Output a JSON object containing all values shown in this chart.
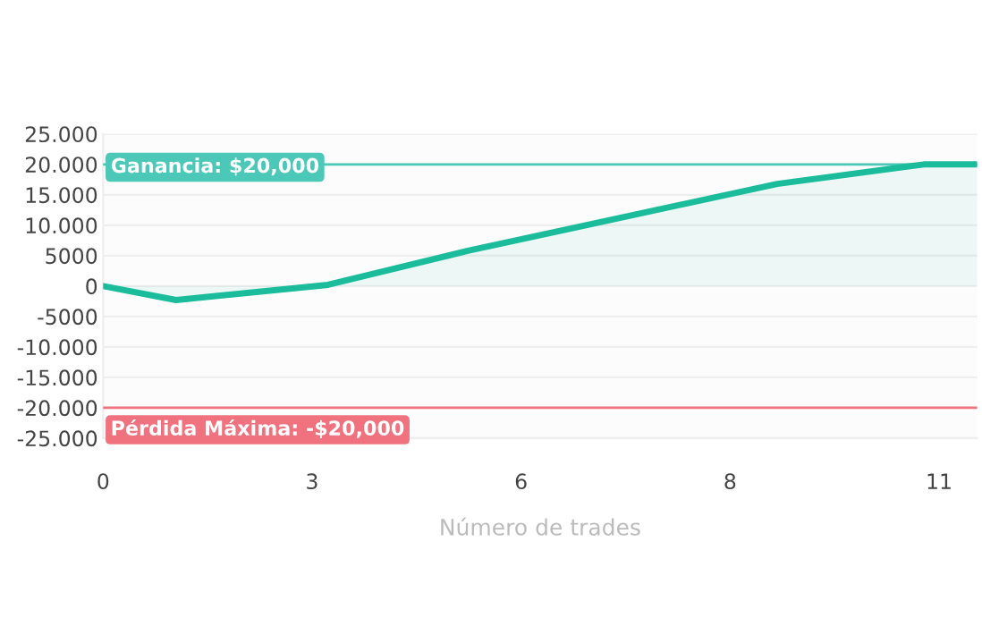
{
  "chart_data": {
    "type": "area",
    "xlabel": "Número de trades",
    "x": [
      0,
      0.96,
      2.96,
      4.8,
      8.87,
      10.8,
      11.5
    ],
    "series": [
      {
        "color": "#1abc9c",
        "values": [
          0,
          -2300,
          200,
          5800,
          16800,
          20000,
          20000
        ]
      }
    ],
    "xlim": [
      0,
      11.5
    ],
    "xticks": [
      0,
      {
        "value": 2.75,
        "label": "3"
      },
      {
        "value": 5.5,
        "label": "6"
      },
      {
        "value": 8.25,
        "label": "8"
      },
      11
    ],
    "ylim": [
      -25000,
      25000
    ],
    "yticks": [
      {
        "value": 25000,
        "label": "25.000"
      },
      {
        "value": 20000,
        "label": "20.000"
      },
      {
        "value": 15000,
        "label": "15.000"
      },
      {
        "value": 10000,
        "label": "10.000"
      },
      5000,
      0,
      {
        "value": -5000,
        "label": "-5000"
      },
      {
        "value": -10000,
        "label": "-10.000"
      },
      {
        "value": -15000,
        "label": "-15.000"
      },
      {
        "value": -20000,
        "label": "-20.000"
      },
      {
        "value": -25000,
        "label": "-25.000"
      }
    ],
    "grid": "y",
    "ref_lines": [
      {
        "axis": "y",
        "value": 20000,
        "color": "#4bc8b8"
      },
      {
        "axis": "y",
        "value": -20000,
        "color": "#f0727f"
      }
    ],
    "annotations": [
      {
        "text": "Ganancia: $20,000",
        "x": 0,
        "y": 20000
      },
      {
        "text": "Pérdida Máxima: -$20,000",
        "x": 0,
        "y": -20000
      }
    ]
  }
}
